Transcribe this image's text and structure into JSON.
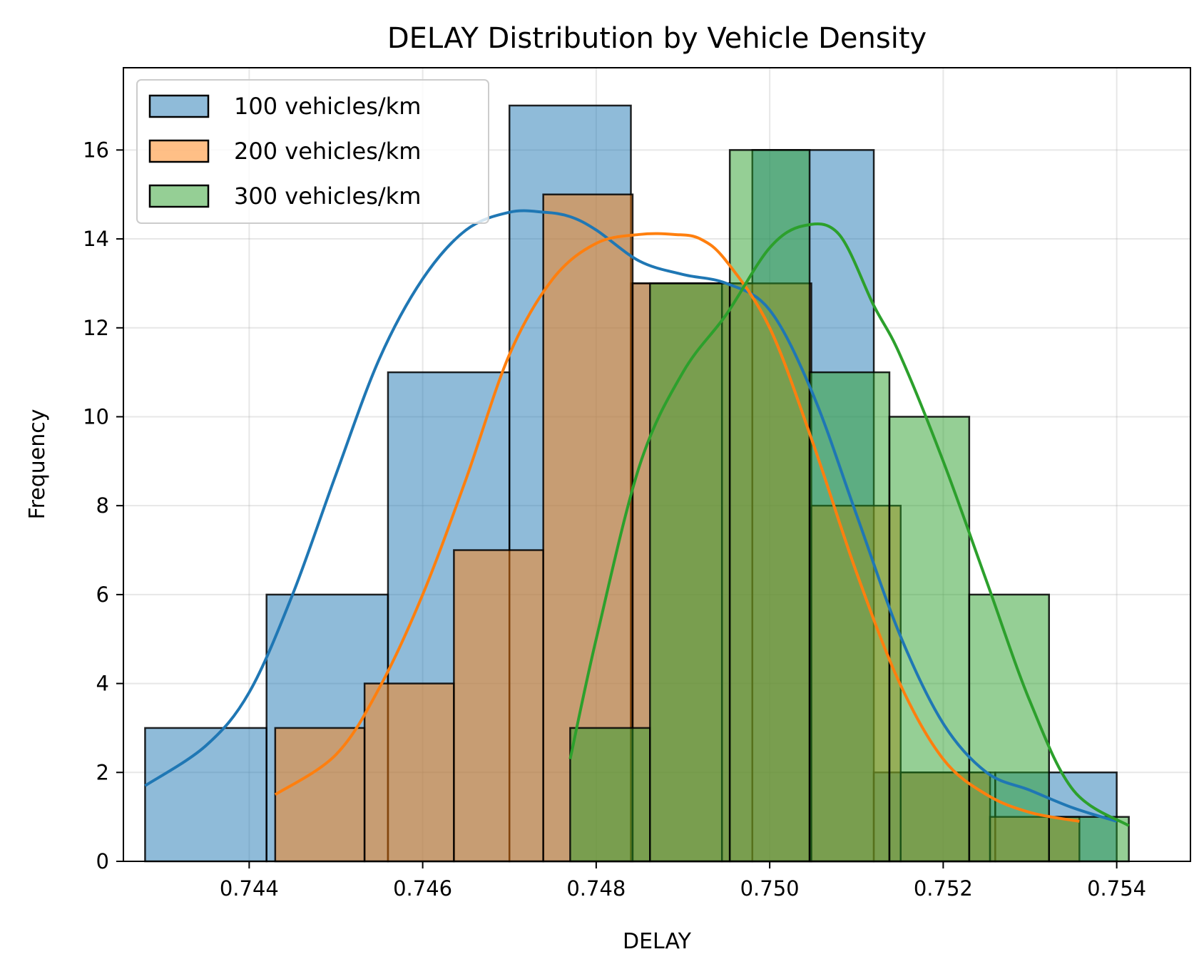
{
  "chart_data": {
    "type": "histogram",
    "title": "DELAY Distribution by Vehicle Density",
    "xlabel": "DELAY",
    "ylabel": "Frequency",
    "xlim": [
      0.74255,
      0.75485
    ],
    "ylim": [
      0,
      17.85
    ],
    "x_ticks": [
      0.744,
      0.746,
      0.748,
      0.75,
      0.752,
      0.754
    ],
    "x_tick_labels": [
      "0.744",
      "0.746",
      "0.748",
      "0.750",
      "0.752",
      "0.754"
    ],
    "y_ticks": [
      0,
      2,
      4,
      6,
      8,
      10,
      12,
      14,
      16
    ],
    "y_tick_labels": [
      "0",
      "2",
      "4",
      "6",
      "8",
      "10",
      "12",
      "14",
      "16"
    ],
    "grid": true,
    "legend_position": "top-left",
    "series": [
      {
        "name": "100 vehicles/km",
        "fill": "#1f77b4",
        "line": "#1f77b4",
        "bin_edges": [
          0.7428,
          0.7442,
          0.7456,
          0.747,
          0.7484,
          0.7498,
          0.7512,
          0.7526,
          0.754
        ],
        "counts": [
          3,
          6,
          11,
          17,
          13,
          16,
          2,
          2
        ],
        "kde_x": [
          0.7428,
          0.7435,
          0.744,
          0.7445,
          0.745,
          0.7455,
          0.746,
          0.7465,
          0.747,
          0.7474,
          0.7477,
          0.748,
          0.7485,
          0.749,
          0.7495,
          0.75,
          0.7505,
          0.751,
          0.7515,
          0.752,
          0.7525,
          0.753,
          0.7535,
          0.754
        ],
        "kde_y": [
          1.7,
          2.6,
          3.8,
          6.0,
          8.7,
          11.3,
          13.1,
          14.2,
          14.6,
          14.6,
          14.5,
          14.2,
          13.5,
          13.2,
          13.0,
          12.4,
          10.5,
          7.8,
          5.1,
          3.1,
          2.0,
          1.6,
          1.2,
          0.9
        ]
      },
      {
        "name": "200 vehicles/km",
        "fill": "#ff7f0e",
        "line": "#ff7f0e",
        "bin_edges": [
          0.7443,
          0.74533,
          0.74636,
          0.74739,
          0.74842,
          0.74945,
          0.75048,
          0.75151,
          0.75254,
          0.75357
        ],
        "counts": [
          3,
          4,
          7,
          15,
          13,
          13,
          8,
          2,
          1
        ],
        "kde_x": [
          0.7443,
          0.745,
          0.7455,
          0.746,
          0.7465,
          0.747,
          0.7475,
          0.748,
          0.7485,
          0.7489,
          0.7492,
          0.7495,
          0.75,
          0.7505,
          0.751,
          0.7515,
          0.752,
          0.7525,
          0.753,
          0.75357
        ],
        "kde_y": [
          1.5,
          2.4,
          3.9,
          6.0,
          8.6,
          11.4,
          13.1,
          13.9,
          14.1,
          14.1,
          14.0,
          13.5,
          12.0,
          9.4,
          6.5,
          4.0,
          2.3,
          1.5,
          1.1,
          0.9
        ]
      },
      {
        "name": "300 vehicles/km",
        "fill": "#2ca02c",
        "line": "#2ca02c",
        "bin_edges": [
          0.7477,
          0.74862,
          0.74954,
          0.75046,
          0.75138,
          0.7523,
          0.75322,
          0.75414
        ],
        "counts": [
          3,
          13,
          16,
          11,
          10,
          6,
          1
        ],
        "kde_x": [
          0.7477,
          0.748,
          0.7485,
          0.749,
          0.7495,
          0.75,
          0.7504,
          0.7508,
          0.7512,
          0.7515,
          0.752,
          0.7525,
          0.753,
          0.7535,
          0.75414
        ],
        "kde_y": [
          2.3,
          5.0,
          8.9,
          11.0,
          12.3,
          13.8,
          14.3,
          14.1,
          12.5,
          11.4,
          9.0,
          6.3,
          3.6,
          1.6,
          0.8
        ]
      }
    ]
  }
}
